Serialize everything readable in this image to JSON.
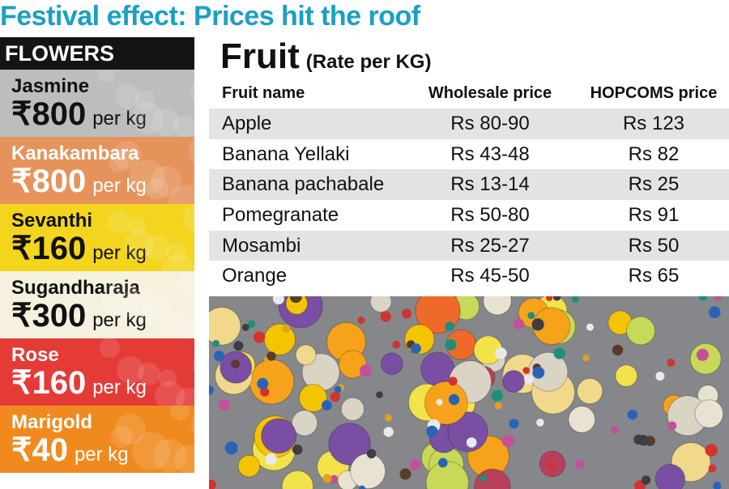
{
  "headline": "Festival effect: Prices hit the roof",
  "flowers": {
    "header": "FLOWERS",
    "items": [
      {
        "name": "Jasmine",
        "price": "₹800",
        "unit": "per kg",
        "color": "#bdbdbd"
      },
      {
        "name": "Kanakambara",
        "price": "₹800",
        "unit": "per kg",
        "color": "#e5935a",
        "text_color": "#ffffff"
      },
      {
        "name": "Sevanthi",
        "price": "₹160",
        "unit": "per kg",
        "color": "#f3d51e"
      },
      {
        "name": "Sugandharaja",
        "price": "₹300",
        "unit": "per kg",
        "color": "#f6f1de"
      },
      {
        "name": "Rose",
        "price": "₹160",
        "unit": "per kg",
        "color": "#e43b37",
        "text_color": "#ffffff"
      },
      {
        "name": "Marigold",
        "price": "₹40",
        "unit": "per kg",
        "color": "#f08a1e",
        "text_color": "#ffffff"
      }
    ]
  },
  "fruit": {
    "title": "Fruit",
    "subtitle": "(Rate per KG)",
    "columns": [
      "Fruit name",
      "Wholesale price",
      "HOPCOMS price"
    ],
    "rows": [
      {
        "name": "Apple",
        "wholesale": "Rs 80-90",
        "hopcoms": "Rs 123"
      },
      {
        "name": "Banana Yellaki",
        "wholesale": "Rs 43-48",
        "hopcoms": "Rs 82"
      },
      {
        "name": "Banana pachabale",
        "wholesale": "Rs 13-14",
        "hopcoms": "Rs 25"
      },
      {
        "name": "Pomegranate",
        "wholesale": "Rs 50-80",
        "hopcoms": "Rs 91"
      },
      {
        "name": "Mosambi",
        "wholesale": "Rs 25-27",
        "hopcoms": "Rs 50"
      },
      {
        "name": "Orange",
        "wholesale": "Rs 45-50",
        "hopcoms": "Rs 65"
      }
    ]
  },
  "colors": {
    "headline": "#1aa0c4",
    "table_shade": "#e3e3e3",
    "header_bg": "#141414"
  }
}
